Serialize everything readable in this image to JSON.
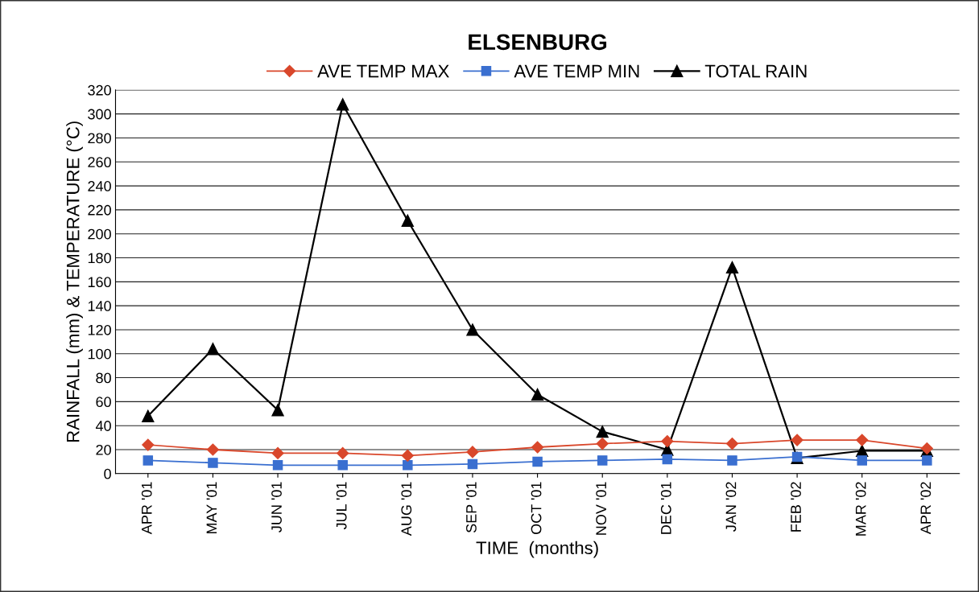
{
  "chart_data": {
    "type": "line",
    "title": "ELSENBURG",
    "xlabel": "TIME  (months)",
    "ylabel": "RAINFALL (mm) & TEMPERATURE (°C)",
    "categories": [
      "APR '01",
      "MAY '01",
      "JUN '01",
      "JUL '01",
      "AUG '01",
      "SEP '01",
      "OCT '01",
      "NOV '01",
      "DEC '01",
      "JAN '02",
      "FEB '02",
      "MAR '02",
      "APR '02"
    ],
    "series": [
      {
        "name": "AVE TEMP MAX",
        "color": "#d9472b",
        "marker": "diamond",
        "values": [
          24,
          20,
          17,
          17,
          15,
          18,
          22,
          25,
          27,
          25,
          28,
          28,
          21
        ]
      },
      {
        "name": "AVE TEMP MIN",
        "color": "#3a6fd0",
        "marker": "square",
        "values": [
          11,
          9,
          7,
          7,
          7,
          8,
          10,
          11,
          12,
          11,
          14,
          11,
          11
        ]
      },
      {
        "name": "TOTAL RAIN",
        "color": "#000000",
        "marker": "triangle",
        "values": [
          48,
          104,
          53,
          308,
          211,
          120,
          66,
          35,
          20,
          172,
          13,
          19,
          19
        ]
      }
    ],
    "ylim": [
      0,
      320
    ],
    "yticks": [
      0,
      20,
      40,
      60,
      80,
      100,
      120,
      140,
      160,
      180,
      200,
      220,
      240,
      260,
      280,
      300,
      320
    ],
    "grid": "y",
    "legend": "top",
    "line_style": "solid"
  }
}
